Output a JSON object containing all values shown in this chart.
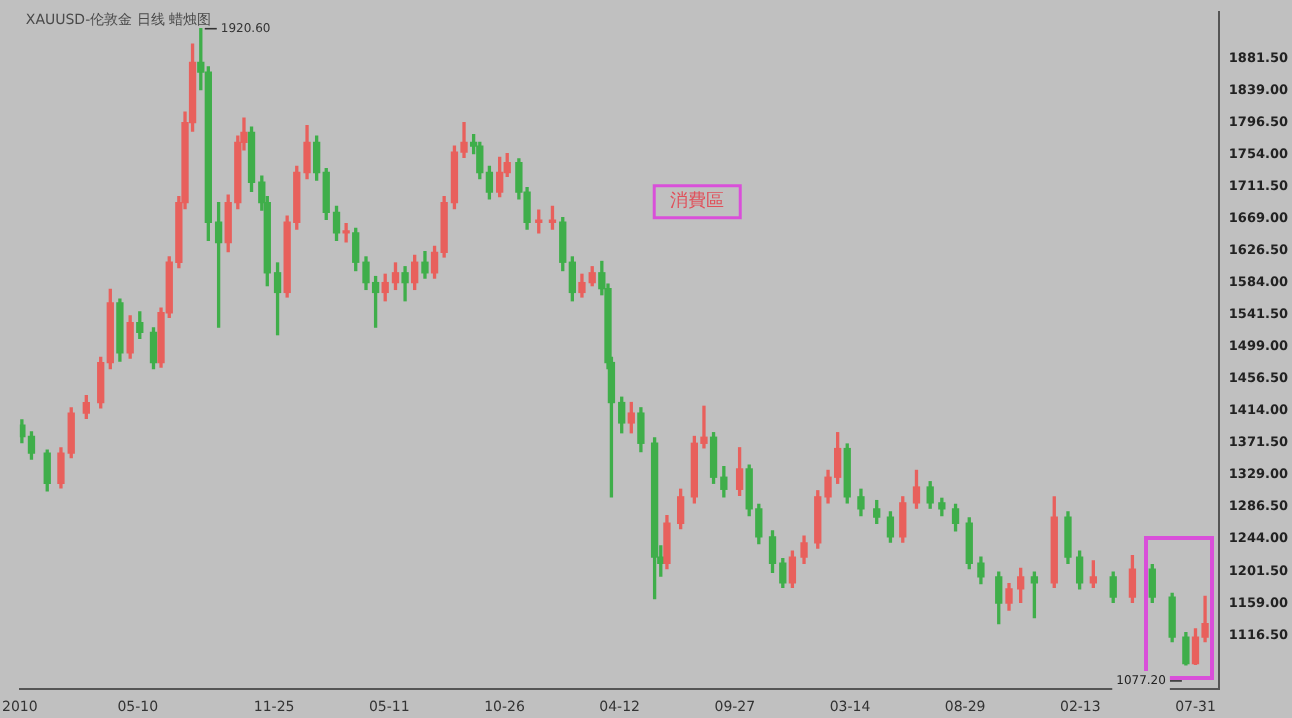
{
  "chart_data": {
    "type": "candlestick",
    "title": "XAUUSD-伦敦金 日线 蜡烛图",
    "x": [
      "2010-11-22",
      "2010-12-06",
      "2010-12-29",
      "2011-01-18",
      "2011-02-02",
      "2011-02-24",
      "2011-03-17",
      "2011-03-31",
      "2011-04-14",
      "2011-04-29",
      "2011-05-13",
      "2011-06-02",
      "2011-06-13",
      "2011-06-25",
      "2011-07-09",
      "2011-07-18",
      "2011-07-29",
      "2011-08-10",
      "2011-08-21",
      "2011-09-05",
      "2011-09-19",
      "2011-10-03",
      "2011-10-12",
      "2011-10-23",
      "2011-11-07",
      "2011-11-15",
      "2011-11-30",
      "2011-12-14",
      "2011-12-28",
      "2012-01-12",
      "2012-01-26",
      "2012-02-09",
      "2012-02-24",
      "2012-03-09",
      "2012-03-23",
      "2012-04-07",
      "2012-04-21",
      "2012-05-05",
      "2012-05-20",
      "2012-06-03",
      "2012-06-17",
      "2012-07-02",
      "2012-07-16",
      "2012-07-30",
      "2012-08-14",
      "2012-08-28",
      "2012-09-11",
      "2012-09-20",
      "2012-10-04",
      "2012-10-19",
      "2012-10-30",
      "2012-11-16",
      "2012-11-28",
      "2012-12-15",
      "2013-01-04",
      "2013-01-19",
      "2013-02-02",
      "2013-02-16",
      "2013-03-03",
      "2013-03-17",
      "2013-03-26",
      "2013-03-31",
      "2013-04-15",
      "2013-04-29",
      "2013-05-13",
      "2013-06-02",
      "2013-06-11",
      "2013-06-20",
      "2013-07-10",
      "2013-07-30",
      "2013-08-13",
      "2013-08-27",
      "2013-09-11",
      "2013-10-04",
      "2013-10-18",
      "2013-11-01",
      "2013-11-21",
      "2013-12-06",
      "2013-12-20",
      "2014-01-06",
      "2014-01-26",
      "2014-02-10",
      "2014-02-24",
      "2014-03-10",
      "2014-03-30",
      "2014-04-22",
      "2014-05-12",
      "2014-05-30",
      "2014-06-19",
      "2014-07-09",
      "2014-07-26",
      "2014-08-15",
      "2014-09-04",
      "2014-09-21",
      "2014-10-17",
      "2014-11-01",
      "2014-11-18",
      "2014-12-08",
      "2015-01-06",
      "2015-01-26",
      "2015-02-12",
      "2015-03-04",
      "2015-04-02",
      "2015-04-30",
      "2015-05-29",
      "2015-06-27",
      "2015-07-17",
      "2015-07-31",
      "2015-08-14"
    ],
    "ohlc": [
      [
        1395,
        1402,
        1372,
        1380
      ],
      [
        1380,
        1386,
        1350,
        1358
      ],
      [
        1358,
        1362,
        1308,
        1318
      ],
      [
        1318,
        1365,
        1312,
        1358
      ],
      [
        1358,
        1418,
        1352,
        1411
      ],
      [
        1411,
        1434,
        1404,
        1425
      ],
      [
        1425,
        1485,
        1418,
        1478
      ],
      [
        1478,
        1575,
        1470,
        1557
      ],
      [
        1557,
        1562,
        1480,
        1491
      ],
      [
        1491,
        1540,
        1484,
        1531
      ],
      [
        1531,
        1545,
        1510,
        1518
      ],
      [
        1518,
        1524,
        1470,
        1478
      ],
      [
        1478,
        1550,
        1472,
        1544
      ],
      [
        1544,
        1618,
        1538,
        1611
      ],
      [
        1611,
        1698,
        1604,
        1690
      ],
      [
        1690,
        1810,
        1682,
        1796
      ],
      [
        1796,
        1900,
        1785,
        1876
      ],
      [
        1876,
        1920.6,
        1840,
        1863
      ],
      [
        1863,
        1870,
        1640,
        1664
      ],
      [
        1664,
        1690,
        1525,
        1637
      ],
      [
        1637,
        1700,
        1625,
        1690
      ],
      [
        1690,
        1778,
        1682,
        1770
      ],
      [
        1770,
        1802,
        1760,
        1783
      ],
      [
        1783,
        1790,
        1705,
        1717
      ],
      [
        1717,
        1725,
        1680,
        1690
      ],
      [
        1690,
        1698,
        1580,
        1597
      ],
      [
        1597,
        1610,
        1515,
        1571
      ],
      [
        1571,
        1672,
        1565,
        1664
      ],
      [
        1664,
        1738,
        1655,
        1730
      ],
      [
        1730,
        1792,
        1722,
        1770
      ],
      [
        1770,
        1778,
        1720,
        1730
      ],
      [
        1730,
        1735,
        1668,
        1677
      ],
      [
        1677,
        1685,
        1640,
        1650
      ],
      [
        1650,
        1662,
        1638,
        1650
      ],
      [
        1650,
        1656,
        1600,
        1611
      ],
      [
        1611,
        1618,
        1575,
        1584
      ],
      [
        1584,
        1592,
        1525,
        1571
      ],
      [
        1571,
        1595,
        1560,
        1584
      ],
      [
        1584,
        1610,
        1575,
        1597
      ],
      [
        1597,
        1605,
        1560,
        1584
      ],
      [
        1584,
        1620,
        1575,
        1611
      ],
      [
        1611,
        1625,
        1590,
        1597
      ],
      [
        1597,
        1632,
        1590,
        1624
      ],
      [
        1624,
        1698,
        1618,
        1690
      ],
      [
        1690,
        1765,
        1682,
        1757
      ],
      [
        1757,
        1796,
        1750,
        1770
      ],
      [
        1770,
        1780,
        1755,
        1765
      ],
      [
        1765,
        1770,
        1722,
        1730
      ],
      [
        1730,
        1738,
        1695,
        1704
      ],
      [
        1704,
        1750,
        1698,
        1730
      ],
      [
        1730,
        1755,
        1725,
        1743
      ],
      [
        1743,
        1748,
        1695,
        1704
      ],
      [
        1704,
        1710,
        1655,
        1664
      ],
      [
        1664,
        1680,
        1650,
        1664
      ],
      [
        1664,
        1685,
        1655,
        1664
      ],
      [
        1664,
        1670,
        1600,
        1611
      ],
      [
        1611,
        1618,
        1560,
        1571
      ],
      [
        1571,
        1595,
        1565,
        1584
      ],
      [
        1584,
        1605,
        1580,
        1597
      ],
      [
        1597,
        1612,
        1568,
        1576
      ],
      [
        1576,
        1582,
        1470,
        1478
      ],
      [
        1478,
        1485,
        1300,
        1425
      ],
      [
        1425,
        1432,
        1385,
        1398
      ],
      [
        1398,
        1425,
        1385,
        1411
      ],
      [
        1411,
        1418,
        1360,
        1371
      ],
      [
        1371,
        1378,
        1165,
        1220
      ],
      [
        1220,
        1235,
        1195,
        1212
      ],
      [
        1212,
        1275,
        1205,
        1265
      ],
      [
        1265,
        1310,
        1258,
        1300
      ],
      [
        1300,
        1380,
        1292,
        1371
      ],
      [
        1371,
        1420,
        1365,
        1379
      ],
      [
        1379,
        1385,
        1318,
        1326
      ],
      [
        1326,
        1340,
        1300,
        1310
      ],
      [
        1310,
        1365,
        1302,
        1337
      ],
      [
        1337,
        1342,
        1275,
        1284
      ],
      [
        1284,
        1290,
        1238,
        1247
      ],
      [
        1247,
        1255,
        1200,
        1212
      ],
      [
        1212,
        1218,
        1180,
        1186
      ],
      [
        1186,
        1228,
        1180,
        1220
      ],
      [
        1220,
        1248,
        1212,
        1239
      ],
      [
        1239,
        1308,
        1232,
        1300
      ],
      [
        1300,
        1335,
        1292,
        1326
      ],
      [
        1326,
        1385,
        1318,
        1364
      ],
      [
        1364,
        1370,
        1292,
        1300
      ],
      [
        1300,
        1310,
        1275,
        1284
      ],
      [
        1284,
        1295,
        1265,
        1273
      ],
      [
        1273,
        1280,
        1240,
        1247
      ],
      [
        1247,
        1300,
        1240,
        1292
      ],
      [
        1292,
        1335,
        1285,
        1313
      ],
      [
        1313,
        1320,
        1285,
        1292
      ],
      [
        1292,
        1298,
        1275,
        1284
      ],
      [
        1284,
        1290,
        1255,
        1265
      ],
      [
        1265,
        1272,
        1205,
        1212
      ],
      [
        1212,
        1220,
        1185,
        1194
      ],
      [
        1194,
        1200,
        1132,
        1159
      ],
      [
        1159,
        1185,
        1150,
        1178
      ],
      [
        1178,
        1205,
        1160,
        1194
      ],
      [
        1194,
        1200,
        1140,
        1186
      ],
      [
        1186,
        1300,
        1180,
        1273
      ],
      [
        1273,
        1280,
        1212,
        1220
      ],
      [
        1220,
        1228,
        1178,
        1186
      ],
      [
        1186,
        1215,
        1180,
        1194
      ],
      [
        1194,
        1200,
        1160,
        1167
      ],
      [
        1167,
        1222,
        1160,
        1204
      ],
      [
        1204,
        1210,
        1160,
        1167
      ],
      [
        1167,
        1172,
        1108,
        1114
      ],
      [
        1114,
        1120,
        1077.2,
        1079
      ],
      [
        1079,
        1125,
        1078,
        1114
      ],
      [
        1114,
        1168,
        1108,
        1132
      ]
    ],
    "colors": [
      "#3fae4a",
      "#3fae4a",
      "#3fae4a",
      "#e8605c",
      "#e8605c",
      "#e8605c",
      "#e8605c",
      "#e8605c",
      "#3fae4a",
      "#e8605c",
      "#3fae4a",
      "#3fae4a",
      "#e8605c",
      "#e8605c",
      "#e8605c",
      "#e8605c",
      "#e8605c",
      "#3fae4a",
      "#3fae4a",
      "#3fae4a",
      "#e8605c",
      "#e8605c",
      "#e8605c",
      "#3fae4a",
      "#3fae4a",
      "#3fae4a",
      "#3fae4a",
      "#e8605c",
      "#e8605c",
      "#e8605c",
      "#3fae4a",
      "#3fae4a",
      "#3fae4a",
      "#e8605c",
      "#3fae4a",
      "#3fae4a",
      "#3fae4a",
      "#e8605c",
      "#e8605c",
      "#3fae4a",
      "#e8605c",
      "#3fae4a",
      "#e8605c",
      "#e8605c",
      "#e8605c",
      "#e8605c",
      "#3fae4a",
      "#3fae4a",
      "#3fae4a",
      "#e8605c",
      "#e8605c",
      "#3fae4a",
      "#3fae4a",
      "#e8605c",
      "#e8605c",
      "#3fae4a",
      "#3fae4a",
      "#e8605c",
      "#e8605c",
      "#3fae4a",
      "#3fae4a",
      "#3fae4a",
      "#3fae4a",
      "#e8605c",
      "#3fae4a",
      "#3fae4a",
      "#3fae4a",
      "#e8605c",
      "#e8605c",
      "#e8605c",
      "#e8605c",
      "#3fae4a",
      "#3fae4a",
      "#e8605c",
      "#3fae4a",
      "#3fae4a",
      "#3fae4a",
      "#3fae4a",
      "#e8605c",
      "#e8605c",
      "#e8605c",
      "#e8605c",
      "#e8605c",
      "#3fae4a",
      "#3fae4a",
      "#3fae4a",
      "#3fae4a",
      "#e8605c",
      "#e8605c",
      "#3fae4a",
      "#3fae4a",
      "#3fae4a",
      "#3fae4a",
      "#3fae4a",
      "#3fae4a",
      "#e8605c",
      "#e8605c",
      "#3fae4a",
      "#e8605c",
      "#3fae4a",
      "#3fae4a",
      "#e8605c",
      "#3fae4a",
      "#e8605c",
      "#3fae4a",
      "#3fae4a",
      "#3fae4a",
      "#e8605c",
      "#e8605c"
    ],
    "xlim": [
      "2010-11-19",
      "2015-09-03"
    ],
    "xticks": [
      {
        "value": "2010-11-19",
        "label": "2010"
      },
      {
        "value": "2011-05-10",
        "label": "05-10"
      },
      {
        "value": "2011-11-25",
        "label": "11-25"
      },
      {
        "value": "2012-05-11",
        "label": "05-11"
      },
      {
        "value": "2012-10-26",
        "label": "10-26"
      },
      {
        "value": "2013-04-12",
        "label": "04-12"
      },
      {
        "value": "2013-09-27",
        "label": "09-27"
      },
      {
        "value": "2014-03-14",
        "label": "03-14"
      },
      {
        "value": "2014-08-29",
        "label": "08-29"
      },
      {
        "value": "2015-02-13",
        "label": "02-13"
      },
      {
        "value": "2015-07-31",
        "label": "07-31"
      }
    ],
    "ylim": [
      1045,
      1943
    ],
    "yticks": [
      {
        "value": 1116.5,
        "label": "1116.50"
      },
      {
        "value": 1159,
        "label": "1159.00"
      },
      {
        "value": 1201.5,
        "label": "1201.50"
      },
      {
        "value": 1244,
        "label": "1244.00"
      },
      {
        "value": 1286.5,
        "label": "1286.50"
      },
      {
        "value": 1329,
        "label": "1329.00"
      },
      {
        "value": 1371.5,
        "label": "1371.50"
      },
      {
        "value": 1414,
        "label": "1414.00"
      },
      {
        "value": 1456.5,
        "label": "1456.50"
      },
      {
        "value": 1499,
        "label": "1499.00"
      },
      {
        "value": 1541.5,
        "label": "1541.50"
      },
      {
        "value": 1584,
        "label": "1584.00"
      },
      {
        "value": 1626.5,
        "label": "1626.50"
      },
      {
        "value": 1669,
        "label": "1669.00"
      },
      {
        "value": 1711.5,
        "label": "1711.50"
      },
      {
        "value": 1754,
        "label": "1754.00"
      },
      {
        "value": 1796.5,
        "label": "1796.50"
      },
      {
        "value": 1839,
        "label": "1839.00"
      },
      {
        "value": 1881.5,
        "label": "1881.50"
      }
    ],
    "annotations": [
      {
        "text": "1920.60",
        "x": "2011-08-10",
        "y": 1920.6
      },
      {
        "text": "1077.20",
        "x": "2015-07-17",
        "y": 1077.2
      },
      "消費區"
    ],
    "grid": false,
    "legend": false
  }
}
